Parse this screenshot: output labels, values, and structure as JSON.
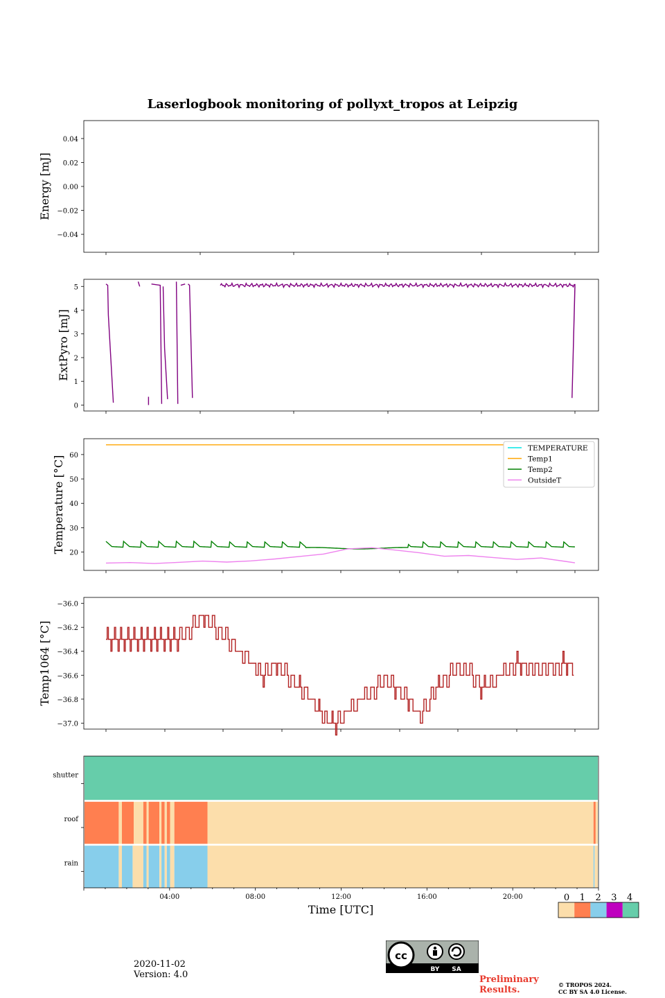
{
  "title": "Laserlogbook monitoring of pollyxt_tropos at Leipzig",
  "footer": {
    "date": "2020-11-02",
    "version": "Version: 4.0",
    "preliminary": [
      "Preliminary",
      "Results."
    ],
    "copyright": [
      "© TROPOS 2024.",
      "CC BY SA 4.0 License."
    ],
    "license_badge": [
      "BY",
      "SA"
    ]
  },
  "colors": {
    "extpyro": "#800080",
    "TEMPERATURE": "#00e5e5",
    "Temp1": "#ffa500",
    "Temp2": "#008000",
    "OutsideT": "#ee82ee",
    "temp1064": "#b22222",
    "status": [
      "#fcdeab",
      "#ff7f50",
      "#87ceeb",
      "#bf00bf",
      "#66cdaa"
    ]
  },
  "chart_data": [
    {
      "type": "line",
      "ylabel": "Energy [mJ]",
      "ylim": [
        -0.055,
        0.055
      ],
      "yticks": [
        0.04,
        0.02,
        0.0,
        -0.02,
        -0.04
      ],
      "ytick_labels": [
        "0.04",
        "0.02",
        "0.00",
        "−0.02",
        "−0.04"
      ],
      "series": []
    },
    {
      "type": "line",
      "ylabel": "ExtPyro [mJ]",
      "ylim": [
        -0.25,
        5.3
      ],
      "yticks": [
        0,
        1,
        2,
        3,
        4,
        5
      ],
      "ytick_labels": [
        "0",
        "1",
        "2",
        "3",
        "4",
        "5"
      ],
      "series": [
        {
          "name": "ExtPyro",
          "segments": [
            [
              [
                0.0,
                5.1
              ],
              [
                0.06,
                5.05
              ],
              [
                0.08,
                3.8
              ],
              [
                0.25,
                0.1
              ]
            ],
            [
              [
                1.1,
                5.2
              ],
              [
                1.15,
                5.0
              ]
            ],
            [
              [
                1.45,
                0.35
              ],
              [
                1.45,
                0.0
              ]
            ],
            [
              [
                1.55,
                5.1
              ],
              [
                1.85,
                5.05
              ],
              [
                1.9,
                0.05
              ]
            ],
            [
              [
                1.95,
                5.0
              ],
              [
                2.0,
                2.4
              ],
              [
                2.1,
                0.25
              ]
            ],
            [
              [
                2.4,
                5.2
              ],
              [
                2.45,
                0.05
              ]
            ],
            [
              [
                2.55,
                5.05
              ],
              [
                2.7,
                5.1
              ]
            ],
            [
              [
                2.8,
                5.1
              ],
              [
                2.85,
                5.05
              ],
              [
                2.95,
                0.3
              ]
            ],
            [
              [
                3.9,
                5.0
              ],
              [
                16.0,
                5.05
              ]
            ],
            [
              [
                16.0,
                5.0
              ],
              [
                15.9,
                0.3
              ],
              [
                16.0,
                5.1
              ]
            ]
          ]
        }
      ]
    },
    {
      "type": "line",
      "ylabel": "Temperature [°C]",
      "ylim": [
        12.5,
        66.5
      ],
      "yticks": [
        20,
        30,
        40,
        50,
        60
      ],
      "ytick_labels": [
        "20",
        "30",
        "40",
        "50",
        "60"
      ],
      "legend": [
        "TEMPERATURE",
        "Temp1",
        "Temp2",
        "OutsideT"
      ],
      "legend_position": "upper right",
      "series": [
        {
          "name": "TEMPERATURE",
          "points": []
        },
        {
          "name": "Temp1",
          "points": [
            [
              0,
              64
            ],
            [
              16,
              64
            ]
          ]
        },
        {
          "name": "Temp2",
          "base": 22.5,
          "sawtooth_peak": 24,
          "points": [
            [
              0,
              23.5
            ],
            [
              7,
              21.5
            ],
            [
              10,
              22
            ],
            [
              11,
              21.5
            ],
            [
              16,
              22
            ]
          ]
        },
        {
          "name": "OutsideT",
          "points": [
            [
              0,
              15.5
            ],
            [
              1,
              15.7
            ],
            [
              2,
              15.3
            ],
            [
              3,
              15.8
            ],
            [
              4,
              16.3
            ],
            [
              5,
              15.9
            ],
            [
              6,
              16.4
            ],
            [
              7,
              17.2
            ],
            [
              8,
              18.2
            ],
            [
              9,
              19.2
            ],
            [
              10,
              21.3
            ],
            [
              11,
              21.8
            ],
            [
              12,
              20.8
            ],
            [
              13,
              19.7
            ],
            [
              14,
              18.3
            ],
            [
              15,
              18.6
            ],
            [
              16,
              17.8
            ],
            [
              17,
              17.0
            ],
            [
              18,
              17.6
            ],
            [
              19,
              16.2
            ],
            [
              19.4,
              15.6
            ]
          ]
        }
      ]
    },
    {
      "type": "line",
      "ylabel": "Temp1064 [°C]",
      "ylim": [
        -37.05,
        -35.95
      ],
      "yticks": [
        -36.0,
        -36.2,
        -36.4,
        -36.6,
        -36.8,
        -37.0
      ],
      "ytick_labels": [
        "−36.0",
        "−36.2",
        "−36.4",
        "−36.6",
        "−36.8",
        "−37.0"
      ],
      "series": [
        {
          "name": "Temp1064",
          "points": [
            [
              0,
              -36.3
            ],
            [
              0.6,
              -36.3
            ],
            [
              1.0,
              -36.3
            ],
            [
              2.0,
              -36.3
            ],
            [
              3.0,
              -36.3
            ],
            [
              3.5,
              -36.2
            ],
            [
              4.0,
              -36.1
            ],
            [
              4.5,
              -36.2
            ],
            [
              5.0,
              -36.3
            ],
            [
              5.5,
              -36.4
            ],
            [
              6.0,
              -36.5
            ],
            [
              6.5,
              -36.6
            ],
            [
              7.0,
              -36.5
            ],
            [
              7.5,
              -36.6
            ],
            [
              8.0,
              -36.7
            ],
            [
              8.5,
              -36.8
            ],
            [
              9.0,
              -36.95
            ],
            [
              9.5,
              -37.0
            ],
            [
              10.0,
              -36.9
            ],
            [
              10.5,
              -36.8
            ],
            [
              11.0,
              -36.75
            ],
            [
              11.5,
              -36.65
            ],
            [
              12.0,
              -36.7
            ],
            [
              12.5,
              -36.8
            ],
            [
              13.0,
              -36.95
            ],
            [
              13.5,
              -36.75
            ],
            [
              14.0,
              -36.65
            ],
            [
              14.5,
              -36.55
            ],
            [
              15.0,
              -36.55
            ],
            [
              15.5,
              -36.7
            ],
            [
              16.0,
              -36.65
            ],
            [
              16.5,
              -36.55
            ],
            [
              17.0,
              -36.5
            ],
            [
              18.0,
              -36.55
            ],
            [
              19.0,
              -36.5
            ],
            [
              19.4,
              -36.55
            ]
          ]
        }
      ]
    },
    {
      "type": "heatmap",
      "rows": [
        "shutter",
        "roof",
        "rain"
      ],
      "xlabel": "Time [UTC]",
      "xticks": [
        "04:00",
        "08:00",
        "12:00",
        "16:00",
        "20:00"
      ],
      "xrange_hours": [
        0,
        24
      ],
      "colorbar_ticks": [
        "0",
        "1",
        "2",
        "3",
        "4"
      ],
      "segments": {
        "shutter": [
          [
            0,
            24,
            4
          ]
        ],
        "roof": [
          [
            0,
            1.6,
            1
          ],
          [
            1.6,
            1.75,
            0
          ],
          [
            1.75,
            2.3,
            1
          ],
          [
            2.3,
            2.75,
            0
          ],
          [
            2.75,
            2.9,
            1
          ],
          [
            2.9,
            3.0,
            0
          ],
          [
            3.0,
            3.5,
            1
          ],
          [
            3.5,
            3.6,
            0
          ],
          [
            3.6,
            3.75,
            1
          ],
          [
            3.75,
            3.85,
            0
          ],
          [
            3.85,
            4.0,
            1
          ],
          [
            4.0,
            4.2,
            0
          ],
          [
            4.2,
            5.75,
            1
          ],
          [
            5.75,
            23.8,
            0
          ],
          [
            23.8,
            23.9,
            1
          ],
          [
            23.9,
            24,
            0
          ]
        ],
        "rain": [
          [
            0,
            1.6,
            2
          ],
          [
            1.6,
            1.75,
            0
          ],
          [
            1.75,
            2.25,
            2
          ],
          [
            2.25,
            2.75,
            0
          ],
          [
            2.75,
            2.9,
            2
          ],
          [
            2.9,
            3.0,
            0
          ],
          [
            3.0,
            3.5,
            2
          ],
          [
            3.5,
            3.6,
            0
          ],
          [
            3.6,
            3.75,
            2
          ],
          [
            3.75,
            3.85,
            0
          ],
          [
            3.85,
            4.0,
            2
          ],
          [
            4.0,
            4.2,
            0
          ],
          [
            4.2,
            5.75,
            2
          ],
          [
            5.75,
            23.8,
            0
          ],
          [
            23.8,
            23.85,
            2
          ],
          [
            23.85,
            24,
            0
          ]
        ]
      }
    }
  ]
}
